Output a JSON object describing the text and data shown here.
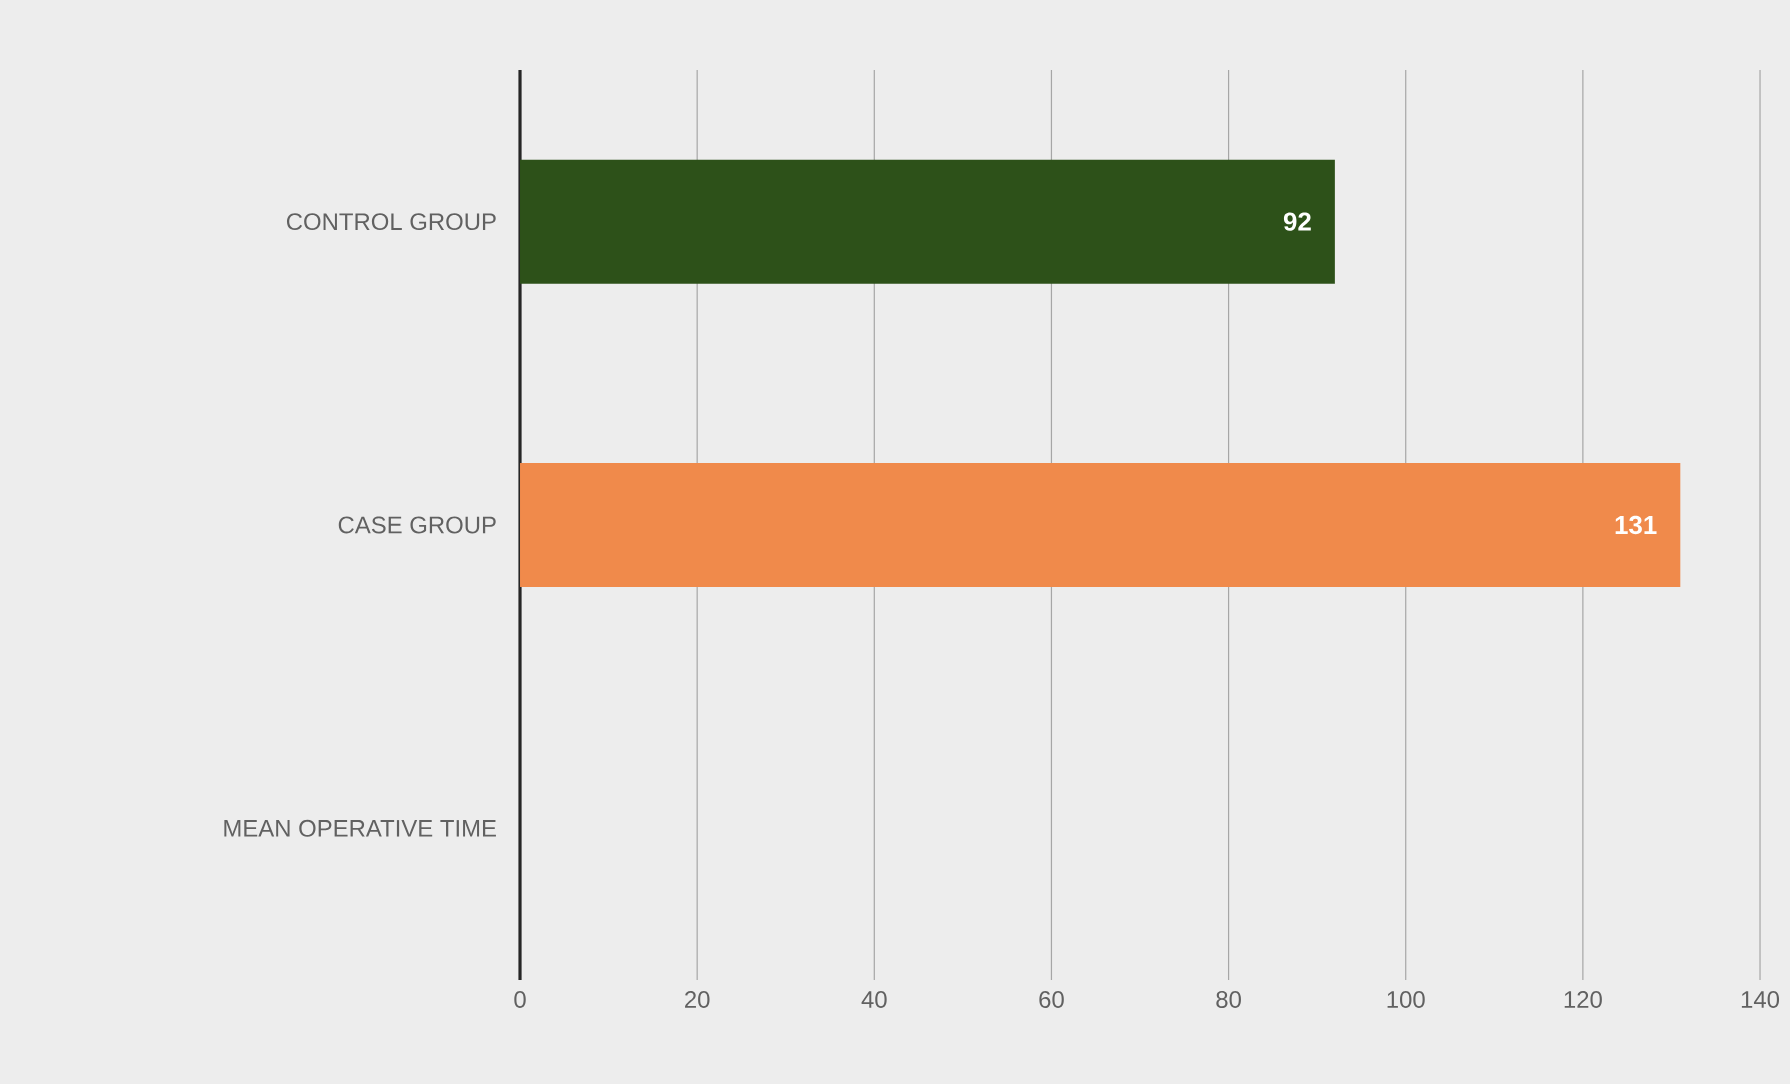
{
  "chart_data": {
    "type": "bar",
    "orientation": "horizontal",
    "categories": [
      "CONTROL GROUP",
      "CASE GROUP",
      "MEAN OPERATIVE TIME"
    ],
    "values": [
      92,
      131,
      null
    ],
    "colors": [
      "#2d5119",
      "#f08a4b",
      "#7f7f7f"
    ],
    "xlim": [
      0,
      140
    ],
    "xticks": [
      0,
      20,
      40,
      60,
      80,
      100,
      120,
      140
    ],
    "grid": "x",
    "data_labels": true
  }
}
